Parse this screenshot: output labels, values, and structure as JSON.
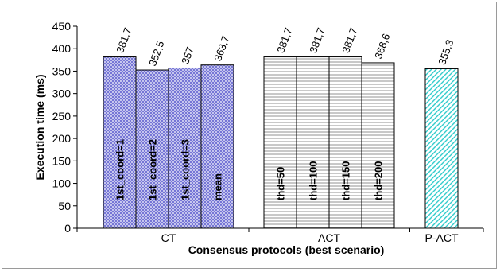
{
  "chart_data": {
    "type": "bar",
    "title": "",
    "xlabel": "Consensus protocols (best scenario)",
    "ylabel": "Execution time (ms)",
    "ylim": [
      0,
      450
    ],
    "yticks": [
      0,
      50,
      100,
      150,
      200,
      250,
      300,
      350,
      400,
      450
    ],
    "grid": false,
    "groups": [
      {
        "name": "CT",
        "pattern": "crosshatch",
        "color": "#3333cc",
        "fill": "#d6d6f2",
        "bars": [
          {
            "label": "1st_coord=1",
            "value": 381.7,
            "value_label": "381,7"
          },
          {
            "label": "1st_coord=2",
            "value": 352.5,
            "value_label": "352,5"
          },
          {
            "label": "1st_coord=3",
            "value": 357,
            "value_label": "357"
          },
          {
            "label": "mean",
            "value": 363.7,
            "value_label": "363,7"
          }
        ]
      },
      {
        "name": "ACT",
        "pattern": "horizontal-lines",
        "color": "#555555",
        "fill": "#ffffff",
        "bars": [
          {
            "label": "thd=50",
            "value": 381.7,
            "value_label": "381,7"
          },
          {
            "label": "thd=100",
            "value": 381.7,
            "value_label": "381,7"
          },
          {
            "label": "thd=150",
            "value": 381.7,
            "value_label": "381,7"
          },
          {
            "label": "thd=200",
            "value": 368.6,
            "value_label": "368,6"
          }
        ]
      },
      {
        "name": "P-ACT",
        "pattern": "diagonal-lines",
        "color": "#33cccc",
        "fill": "#ffffff",
        "bars": [
          {
            "label": "",
            "value": 355.3,
            "value_label": "355,3"
          }
        ]
      }
    ]
  }
}
